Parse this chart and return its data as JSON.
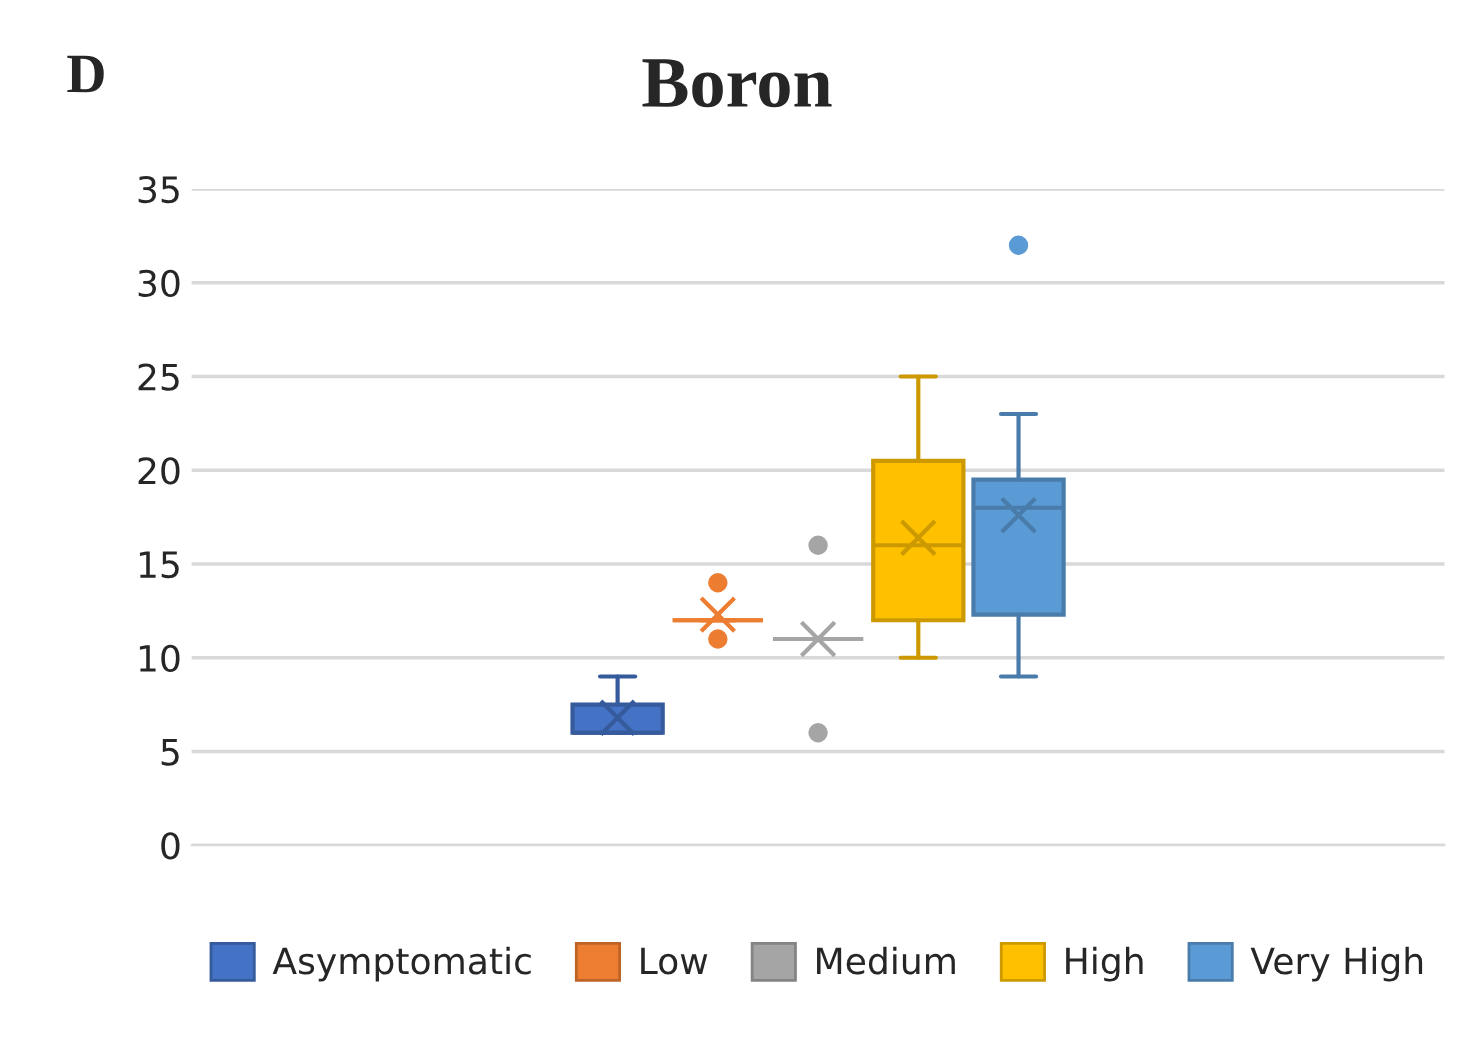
{
  "chart_data": {
    "type": "box",
    "title": "Boron",
    "annotations": [
      "D"
    ],
    "categories": [
      null
    ],
    "series": [
      {
        "name": "Asymptomatic",
        "color": "#4472c4",
        "boxes": [
          {
            "low": 6,
            "q1": 6,
            "median": 6,
            "q3": 7.5,
            "high": 9,
            "mean": 6.8
          }
        ]
      },
      {
        "name": "Low",
        "color": "#ed7d31",
        "boxes": [
          {
            "low": 12,
            "q1": 12,
            "median": 12,
            "q3": 12,
            "high": 12,
            "mean": 12.3,
            "outliers": [
              14,
              11
            ]
          }
        ]
      },
      {
        "name": "Medium",
        "color": "#a5a5a5",
        "boxes": [
          {
            "low": 11,
            "q1": 11,
            "median": 11,
            "q3": 11,
            "high": 11,
            "mean": 11,
            "outliers": [
              16,
              6
            ]
          }
        ]
      },
      {
        "name": "High",
        "color": "#ffc000",
        "boxes": [
          {
            "low": 10,
            "q1": 12,
            "median": 16,
            "q3": 20.5,
            "high": 25,
            "mean": 16.4
          }
        ]
      },
      {
        "name": "Very High",
        "color": "#5b9bd5",
        "boxes": [
          {
            "low": 9,
            "q1": 12.3,
            "median": 18,
            "q3": 19.5,
            "high": 23,
            "mean": 17.6,
            "outliers": [
              32
            ]
          }
        ]
      }
    ],
    "ylim": [
      0,
      35
    ],
    "yticks": [
      0,
      5,
      10,
      15,
      20,
      25,
      30,
      35
    ],
    "grid": "y",
    "legend": "bottom"
  }
}
